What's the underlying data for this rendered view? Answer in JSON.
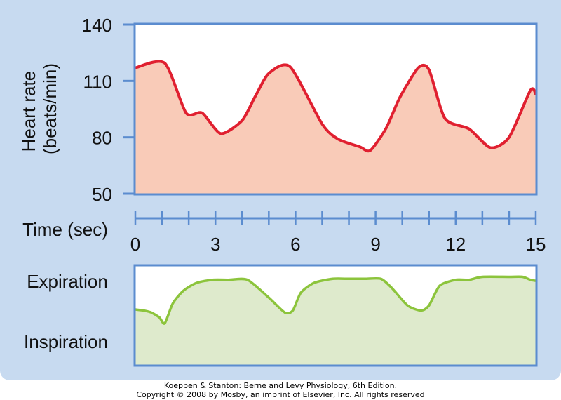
{
  "chart_data": [
    {
      "type": "area",
      "title": "",
      "xlabel": "Time (sec)",
      "ylabel": "Heart rate (beats/min)",
      "ylabel_lines": [
        "Heart rate",
        "(beats/min)"
      ],
      "xlim": [
        0,
        15
      ],
      "ylim": [
        50,
        140
      ],
      "xticks": [
        0,
        3,
        6,
        9,
        12,
        15
      ],
      "yticks": [
        50,
        80,
        110,
        140
      ],
      "x_minor_step": 1,
      "grid": false,
      "line_color": "#e02030",
      "fill_color": "#f9cbb8",
      "series": [
        {
          "x": [
            0,
            1.1,
            1.9,
            2.5,
            3.2,
            4.0,
            4.5,
            5.0,
            5.8,
            7.0,
            7.6,
            8.4,
            8.8,
            9.4,
            9.9,
            10.6,
            11.0,
            11.6,
            12.5,
            13.3,
            14.0,
            14.8,
            15.0
          ],
          "y": [
            117,
            119.5,
            93,
            93,
            82,
            89,
            102,
            114,
            117.5,
            87,
            79,
            75,
            73,
            85,
            101,
            117,
            116,
            90,
            84.5,
            74.5,
            80,
            105,
            103
          ]
        }
      ]
    },
    {
      "type": "area",
      "title": "",
      "category_labels": [
        "Expiration",
        "Inspiration"
      ],
      "xlim": [
        0,
        15
      ],
      "ylim": [
        0,
        1
      ],
      "grid": false,
      "line_color": "#8cc43c",
      "fill_color": "#deeacc",
      "series": [
        {
          "x": [
            0,
            0.3,
            0.6,
            0.9,
            1.1,
            1.4,
            1.8,
            2.3,
            2.9,
            3.5,
            4.2,
            5.0,
            5.6,
            5.9,
            6.2,
            6.7,
            7.4,
            8.0,
            8.6,
            9.2,
            9.6,
            10.2,
            10.7,
            11.0,
            11.4,
            12.0,
            12.5,
            13.0,
            14.0,
            14.5,
            14.8,
            15.0
          ],
          "y": [
            0.56,
            0.55,
            0.53,
            0.48,
            0.42,
            0.62,
            0.75,
            0.83,
            0.86,
            0.86,
            0.86,
            0.68,
            0.53,
            0.55,
            0.73,
            0.83,
            0.87,
            0.87,
            0.87,
            0.87,
            0.78,
            0.6,
            0.55,
            0.6,
            0.8,
            0.86,
            0.86,
            0.89,
            0.89,
            0.89,
            0.86,
            0.85
          ]
        }
      ]
    }
  ],
  "credits": {
    "line1": "Koeppen & Stanton: Berne and Levy Physiology, 6th Edition.",
    "line2": "Copyright © 2008 by Mosby, an imprint of Elsevier, Inc. All rights reserved"
  }
}
